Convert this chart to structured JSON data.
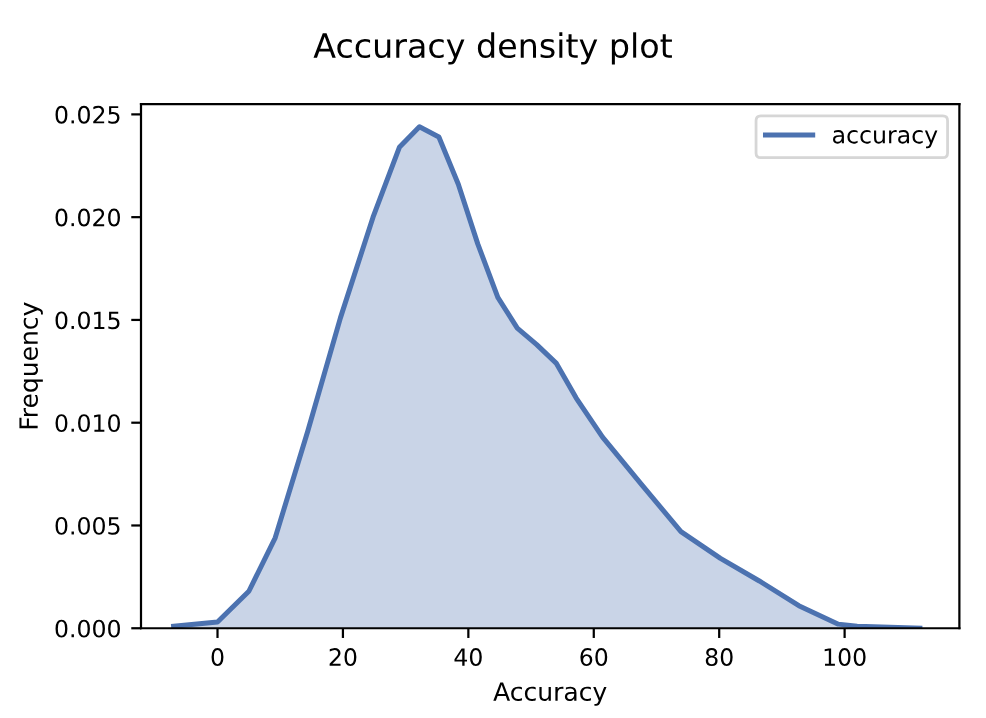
{
  "chart_data": {
    "type": "area",
    "title": "Accuracy density plot",
    "xlabel": "Accuracy",
    "ylabel": "Frequency",
    "xlim": [
      -12.2,
      118.3
    ],
    "ylim": [
      0,
      0.0255
    ],
    "xticks": [
      0,
      20,
      40,
      60,
      80,
      100
    ],
    "yticks": [
      {
        "value": 0,
        "label": "0.000"
      },
      {
        "value": 0.005,
        "label": "0.005"
      },
      {
        "value": 0.01,
        "label": "0.010"
      },
      {
        "value": 0.015,
        "label": "0.015"
      },
      {
        "value": 0.02,
        "label": "0.020"
      },
      {
        "value": 0.025,
        "label": "0.025"
      }
    ],
    "grid": false,
    "legend": "top right",
    "series": [
      {
        "name": "accuracy",
        "color": "#4c72b0",
        "x": [
          -7,
          0,
          5,
          9.2,
          14.4,
          19.6,
          24.8,
          29,
          32.2,
          35.3,
          38.4,
          41.5,
          44.7,
          47.8,
          50.9,
          54,
          57.2,
          61.4,
          67.6,
          73.9,
          80.2,
          86.4,
          92.7,
          99,
          102,
          112
        ],
        "values": [
          0.0001,
          0.0003,
          0.0018,
          0.0044,
          0.0096,
          0.0151,
          0.02,
          0.0234,
          0.0244,
          0.0239,
          0.0216,
          0.0187,
          0.0161,
          0.0146,
          0.0138,
          0.0129,
          0.0112,
          0.0093,
          0.007,
          0.0047,
          0.0034,
          0.0023,
          0.0011,
          0.0002,
          0.0001,
          0
        ]
      }
    ]
  }
}
